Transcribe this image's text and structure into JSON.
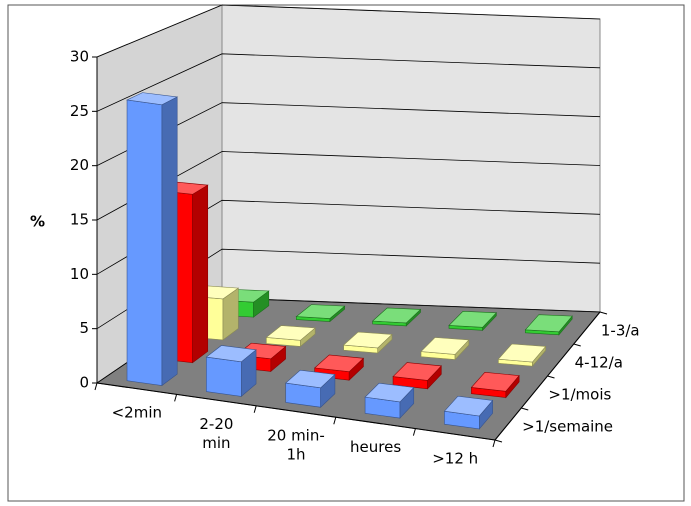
{
  "chart_data": {
    "type": "bar3d",
    "ylabel": "%",
    "categories": [
      "<2min",
      "2-20\nmin",
      "20 min-\n1h",
      "heures",
      ">12 h"
    ],
    "series": [
      {
        "name": ">1/semaine",
        "color": "#6699ff",
        "values": [
          26,
          3.2,
          1.8,
          1.5,
          1.2
        ]
      },
      {
        "name": ">1/mois",
        "color": "#ff0000",
        "values": [
          16,
          1.2,
          0.8,
          0.8,
          0.6
        ]
      },
      {
        "name": "4-12/a",
        "color": "#ffff99",
        "values": [
          4,
          0.6,
          0.5,
          0.5,
          0.4
        ]
      },
      {
        "name": "1-3/a",
        "color": "#33cc33",
        "values": [
          1.5,
          0.3,
          0.3,
          0.3,
          0.3
        ]
      }
    ],
    "ylim": [
      0,
      30
    ],
    "yticks": [
      0,
      5,
      10,
      15,
      20,
      25,
      30
    ],
    "grid": true
  }
}
